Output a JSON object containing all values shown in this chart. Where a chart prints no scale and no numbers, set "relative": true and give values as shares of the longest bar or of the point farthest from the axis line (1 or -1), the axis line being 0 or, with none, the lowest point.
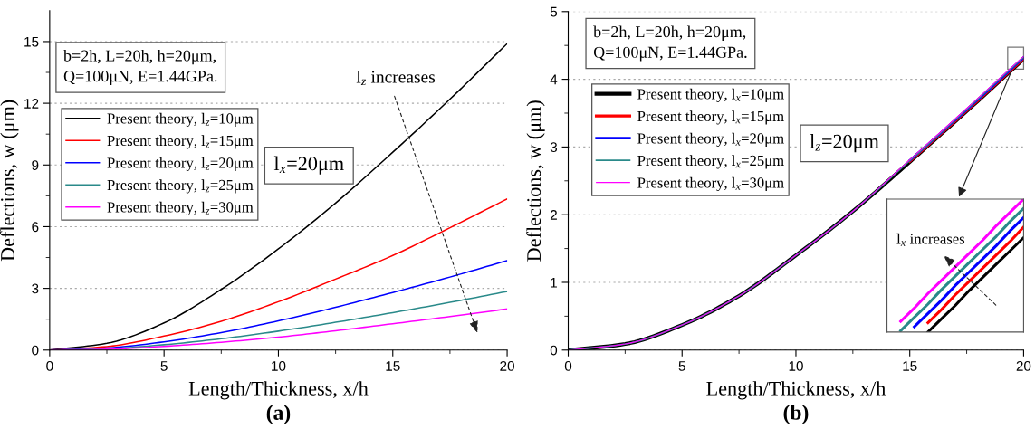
{
  "chart_data": [
    {
      "type": "line",
      "title": "(a)",
      "xlabel": "Length/Thickness, x/h",
      "ylabel": "Deflections, w (μm)",
      "x": [
        0,
        2.5,
        5,
        7.5,
        10,
        12.5,
        15,
        17.5,
        20
      ],
      "series": [
        {
          "name": "Present theory, l$_{z}$=10μm",
          "color": "#000000",
          "values": [
            0,
            0.33,
            1.32,
            2.95,
            4.92,
            7.15,
            9.62,
            12.2,
            14.9
          ]
        },
        {
          "name": "Present theory, l$_{z}$=15μm",
          "color": "#ff0000",
          "values": [
            0,
            0.17,
            0.68,
            1.4,
            2.35,
            3.45,
            4.6,
            5.95,
            7.35
          ]
        },
        {
          "name": "Present theory, l$_{z}$=20μm",
          "color": "#0000ff",
          "values": [
            0,
            0.1,
            0.4,
            0.85,
            1.42,
            2.08,
            2.8,
            3.55,
            4.35
          ]
        },
        {
          "name": "Present theory, l$_{z}$=25μm",
          "color": "#2a8a8a",
          "values": [
            0,
            0.06,
            0.26,
            0.55,
            0.92,
            1.35,
            1.82,
            2.32,
            2.85
          ]
        },
        {
          "name": "Present theory, l$_{z}$=30μm",
          "color": "#ff00ff",
          "values": [
            0,
            0.04,
            0.18,
            0.38,
            0.63,
            0.94,
            1.28,
            1.63,
            2.0
          ]
        }
      ],
      "xlim": [
        0,
        20
      ],
      "ylim": [
        0,
        16.5
      ],
      "xticks": [
        0,
        {
          "value": 2.5,
          "label": null
        },
        5,
        {
          "value": 7.5,
          "label": null
        },
        10,
        {
          "value": 12.5,
          "label": null
        },
        15,
        {
          "value": 17.5,
          "label": null
        },
        20
      ],
      "yticks": [
        0,
        {
          "value": 1.5,
          "label": null
        },
        3,
        {
          "value": 4.5,
          "label": null
        },
        6,
        {
          "value": 7.5,
          "label": null
        },
        9,
        {
          "value": 10.5,
          "label": null
        },
        12,
        {
          "value": 13.5,
          "label": null
        },
        15
      ],
      "grid": "y",
      "legend": "top left",
      "line_style": "solid",
      "marker": "none",
      "annotations": [
        "b=2h, L=20h, h=20μm,\nQ=100μN, E=1.44GPa.",
        "l$_{x}$=20μm",
        "l$_{z}$ increases"
      ]
    },
    {
      "type": "line",
      "title": "(b)",
      "xlabel": "Length/Thickness, x/h",
      "ylabel": "Deflections, w (μm)",
      "x": [
        0,
        2.5,
        5,
        7.5,
        10,
        12.5,
        15,
        17.5,
        20
      ],
      "series": [
        {
          "name": "Present theory, l$_{x}$=10μm",
          "color": "#000000",
          "values": [
            0,
            0.09,
            0.37,
            0.8,
            1.4,
            2.05,
            2.78,
            3.53,
            4.3
          ]
        },
        {
          "name": "Present theory, l$_{x}$=15μm",
          "color": "#ff0000",
          "values": [
            null,
            null,
            null,
            null,
            null,
            null,
            2.79,
            3.54,
            4.31
          ]
        },
        {
          "name": "Present theory, l$_{x}$=20μm",
          "color": "#0000ff",
          "values": [
            null,
            null,
            null,
            null,
            null,
            null,
            2.8,
            3.55,
            4.32
          ]
        },
        {
          "name": "Present theory, l$_{x}$=25μm",
          "color": "#2a8a8a",
          "values": [
            0,
            0.09,
            0.37,
            0.8,
            1.4,
            2.05,
            2.8,
            3.56,
            4.33
          ]
        },
        {
          "name": "Present theory, l$_{x}$=30μm",
          "color": "#ff00ff",
          "values": [
            0,
            0.09,
            0.37,
            0.8,
            1.4,
            2.05,
            2.81,
            3.57,
            4.34
          ]
        }
      ],
      "xlim": [
        0,
        20
      ],
      "ylim": [
        0,
        5
      ],
      "xticks": [
        0,
        {
          "value": 2.5,
          "label": null
        },
        5,
        {
          "value": 7.5,
          "label": null
        },
        10,
        {
          "value": 12.5,
          "label": null
        },
        15,
        {
          "value": 17.5,
          "label": null
        },
        20
      ],
      "yticks": [
        0,
        {
          "value": 0.5,
          "label": null
        },
        1,
        {
          "value": 1.5,
          "label": null
        },
        2,
        {
          "value": 2.5,
          "label": null
        },
        3,
        {
          "value": 3.5,
          "label": null
        },
        4,
        {
          "value": 4.5,
          "label": null
        },
        5
      ],
      "grid": "y",
      "legend": "top left",
      "line_style": "solid",
      "marker": "none",
      "annotations": [
        "b=2h, L=20h, h=20μm,\nQ=100μN, E=1.44GPa.",
        "l$_{z}$=20μm"
      ]
    },
    {
      "type": "line",
      "relative": true,
      "categories": [
        null,
        null,
        null,
        null,
        null,
        null,
        null,
        null,
        null,
        null,
        null
      ],
      "series": [
        {
          "color": "#ff00ff",
          "values": [
            null,
            0.08,
            0.18,
            0.29,
            0.39,
            0.49,
            0.59,
            0.69,
            0.8,
            0.9,
            1.0
          ]
        },
        {
          "color": "#2a8a8a",
          "values": [
            null,
            0.01,
            0.11,
            0.21,
            0.32,
            0.42,
            0.52,
            0.62,
            0.72,
            0.83,
            0.93
          ]
        },
        {
          "color": "#0000ff",
          "values": [
            null,
            null,
            0.04,
            0.14,
            0.24,
            0.35,
            0.45,
            0.55,
            0.65,
            0.76,
            0.86
          ]
        },
        {
          "color": "#ff0000",
          "values": [
            null,
            null,
            null,
            0.07,
            0.17,
            0.28,
            0.38,
            0.48,
            0.58,
            0.68,
            0.79
          ]
        },
        {
          "color": "#000000",
          "values": [
            null,
            null,
            null,
            0.0,
            0.1,
            0.2,
            0.31,
            0.41,
            0.51,
            0.61,
            0.71
          ]
        }
      ],
      "line_style": "solid",
      "marker": "none",
      "annotations": [
        "l$_{x}$ increases"
      ]
    }
  ]
}
